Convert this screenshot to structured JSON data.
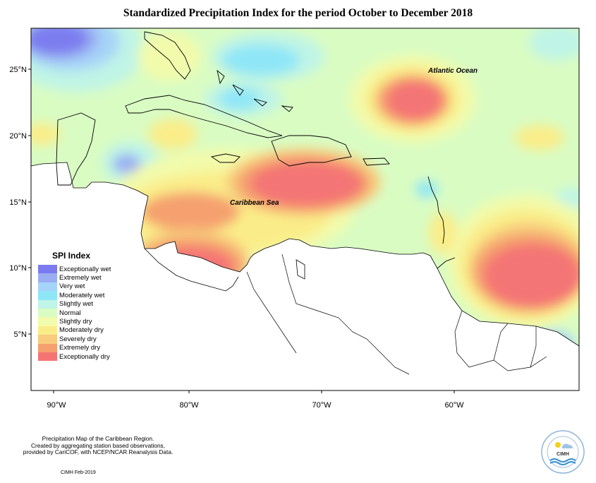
{
  "title": "Standardized Precipitation Index for the period October to December 2018",
  "map_labels": {
    "atlantic_ocean": "Atlantic Ocean",
    "caribbean_sea": "Caribbean Sea"
  },
  "axes": {
    "latitude_ticks": [
      "25°N",
      "20°N",
      "15°N",
      "10°N",
      "5°N"
    ],
    "longitude_ticks": [
      "90°W",
      "80°W",
      "70°W",
      "60°W"
    ]
  },
  "legend": {
    "title": "SPI Index",
    "items": [
      {
        "label": "Exceptionally wet",
        "color": "#7b7bef"
      },
      {
        "label": "Extremely wet",
        "color": "#9aaef2"
      },
      {
        "label": "Very wet",
        "color": "#a6d3f8"
      },
      {
        "label": "Moderately wet",
        "color": "#8fe6f7"
      },
      {
        "label": "Slightly wet",
        "color": "#bff4e6"
      },
      {
        "label": "Normal",
        "color": "#d9fcc3"
      },
      {
        "label": "Slightly dry",
        "color": "#f2fbab"
      },
      {
        "label": "Moderately dry",
        "color": "#faed89"
      },
      {
        "label": "Severely dry",
        "color": "#f8cc7c"
      },
      {
        "label": "Extremely dry",
        "color": "#f5a06e"
      },
      {
        "label": "Exceptionally dry",
        "color": "#f47474"
      }
    ]
  },
  "credits": {
    "line1": "Precipitation Map of the Caribbean Region.",
    "line2": "Created by aggregating station based observations,",
    "line3": "provided by CariCOF, with NCEP/NCAR Reanalysis Data.",
    "date": "CIMH Feb-2019",
    "logo_text": "CIMH"
  }
}
